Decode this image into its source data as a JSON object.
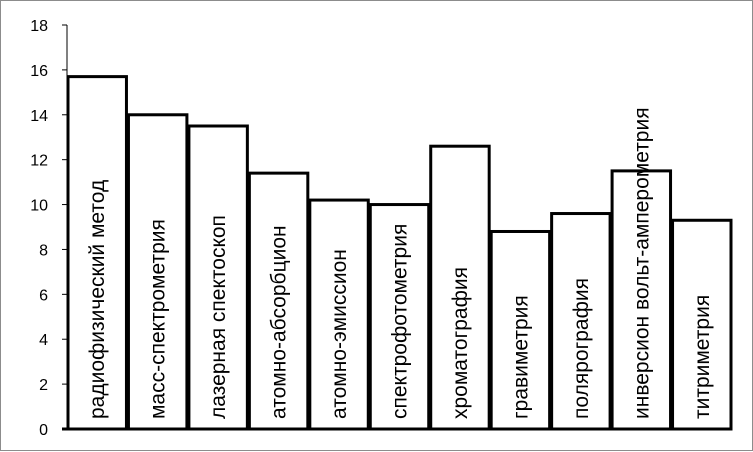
{
  "chart_data": {
    "type": "bar",
    "title": "",
    "xlabel": "",
    "ylabel": "",
    "ylim": [
      0,
      18
    ],
    "yticks": [
      0,
      2,
      4,
      6,
      8,
      10,
      12,
      14,
      16,
      18
    ],
    "grid": false,
    "legend": "none",
    "categories": [
      "радиофизический метод",
      "масс-спектрометрия",
      "лазерная спектоскоп",
      "атомно-абсорбцион",
      "атомно-эмиссион",
      "спектрофотометрия",
      "хроматография",
      "гравиметрия",
      "полярография",
      "инверсион вольт-амперометрия",
      "титриметрия"
    ],
    "values": [
      15.7,
      14.0,
      13.5,
      11.4,
      10.2,
      10.0,
      12.6,
      8.8,
      9.6,
      11.5,
      9.3
    ],
    "colors": {
      "bar_fill": "#ffffff",
      "bar_stroke": "#000000",
      "axis": "#000000",
      "frame": "#8c8c8c"
    }
  }
}
